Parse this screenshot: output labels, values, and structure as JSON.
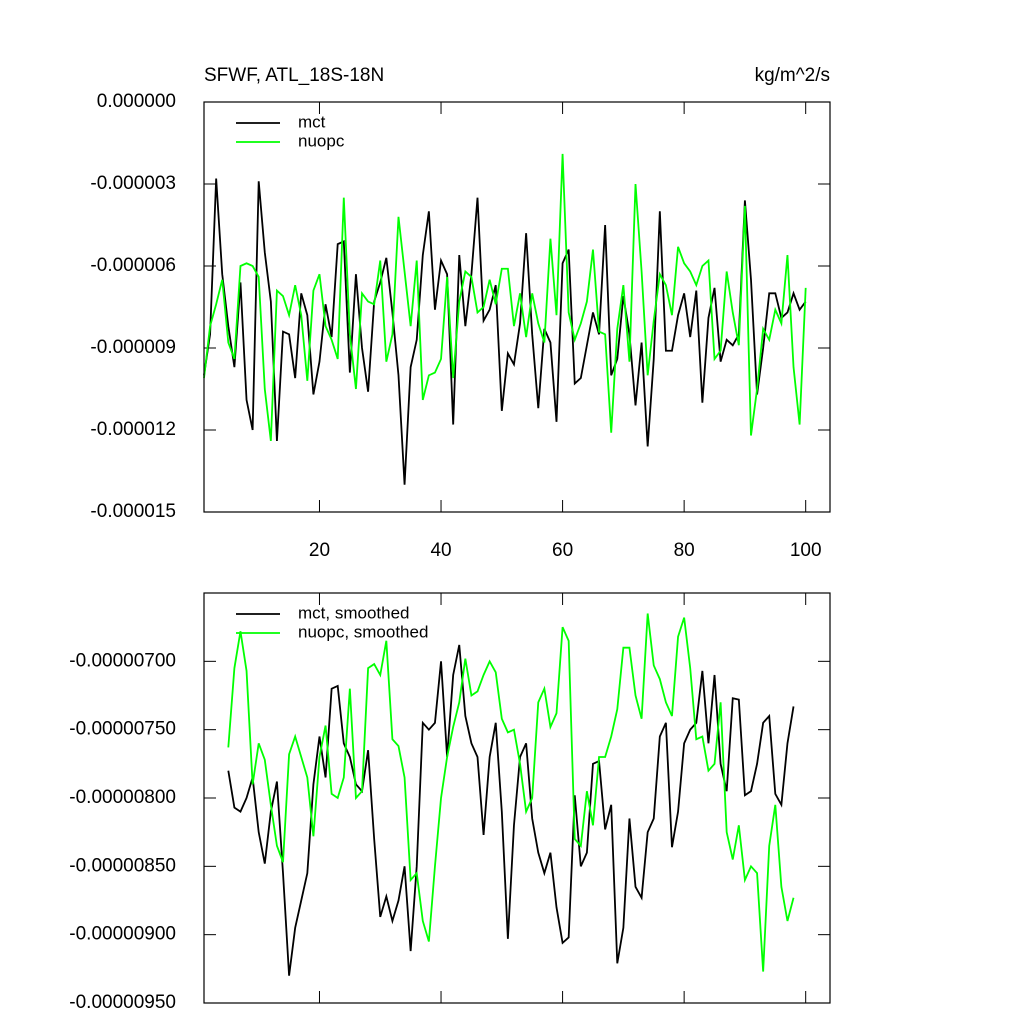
{
  "chart_data": [
    {
      "type": "line",
      "title": "SFWF, ATL_18S-18N",
      "subtitle": "kg/m^2/s",
      "x": [
        1,
        2,
        3,
        4,
        5,
        6,
        7,
        8,
        9,
        10,
        11,
        12,
        13,
        14,
        15,
        16,
        17,
        18,
        19,
        20,
        21,
        22,
        23,
        24,
        25,
        26,
        27,
        28,
        29,
        30,
        31,
        32,
        33,
        34,
        35,
        36,
        37,
        38,
        39,
        40,
        41,
        42,
        43,
        44,
        45,
        46,
        47,
        48,
        49,
        50,
        51,
        52,
        53,
        54,
        55,
        56,
        57,
        58,
        59,
        60,
        61,
        62,
        63,
        64,
        65,
        66,
        67,
        68,
        69,
        70,
        71,
        72,
        73,
        74,
        75,
        76,
        77,
        78,
        79,
        80,
        81,
        82,
        83,
        84,
        85,
        86,
        87,
        88,
        89,
        90,
        91,
        92,
        93,
        94,
        95,
        96,
        97,
        98,
        99,
        100
      ],
      "series": [
        {
          "name": "mct",
          "color": "#000000",
          "values": [
            -1e-05,
            -8.5e-06,
            -2.8e-06,
            -6.3e-06,
            -8.2e-06,
            -9.7e-06,
            -6.6e-06,
            -1.09e-05,
            -1.2e-05,
            -2.9e-06,
            -5.5e-06,
            -7.3e-06,
            -1.24e-05,
            -8.4e-06,
            -8.5e-06,
            -1.01e-05,
            -7e-06,
            -7.8e-06,
            -1.07e-05,
            -9.5e-06,
            -7.4e-06,
            -8.6e-06,
            -5.2e-06,
            -5.1e-06,
            -9.9e-06,
            -6.3e-06,
            -9e-06,
            -1.06e-05,
            -7.3e-06,
            -6.6e-06,
            -5.7e-06,
            -7.7e-06,
            -1e-05,
            -1.4e-05,
            -9.7e-06,
            -8.7e-06,
            -5.6e-06,
            -4e-06,
            -7.6e-06,
            -5.8e-06,
            -6.3e-06,
            -1.18e-05,
            -5.6e-06,
            -8.2e-06,
            -6.3e-06,
            -3.5e-06,
            -8e-06,
            -7.6e-06,
            -6.7e-06,
            -1.13e-05,
            -9.2e-06,
            -9.6e-06,
            -8.1e-06,
            -4.8e-06,
            -8.5e-06,
            -1.12e-05,
            -8.3e-06,
            -8.8e-06,
            -1.17e-05,
            -5.9e-06,
            -5.4e-06,
            -1.03e-05,
            -1.01e-05,
            -8.9e-06,
            -7.7e-06,
            -8.5e-06,
            -4.5e-06,
            -1e-05,
            -9.4e-06,
            -7.1e-06,
            -8.5e-06,
            -1.11e-05,
            -8.8e-06,
            -1.26e-05,
            -9.4e-06,
            -4e-06,
            -9.1e-06,
            -9.1e-06,
            -7.8e-06,
            -7e-06,
            -8.6e-06,
            -6.9e-06,
            -1.1e-05,
            -7.9e-06,
            -6.8e-06,
            -9.5e-06,
            -8.7e-06,
            -8.9e-06,
            -8.5e-06,
            -3.6e-06,
            -6.5e-06,
            -1.07e-05,
            -9e-06,
            -7e-06,
            -7e-06,
            -7.9e-06,
            -7.7e-06,
            -7e-06,
            -7.6e-06,
            -7.3e-06
          ]
        },
        {
          "name": "nuopc",
          "color": "#00ff00",
          "values": [
            -1.01e-05,
            -8.2e-06,
            -7.4e-06,
            -6.5e-06,
            -8.8e-06,
            -9.4e-06,
            -6e-06,
            -5.9e-06,
            -6e-06,
            -6.4e-06,
            -1.05e-05,
            -1.24e-05,
            -6.9e-06,
            -7.1e-06,
            -7.8e-06,
            -6.7e-06,
            -7.8e-06,
            -1.02e-05,
            -6.9e-06,
            -6.3e-06,
            -8.2e-06,
            -8.7e-06,
            -9.4e-06,
            -3.5e-06,
            -8.5e-06,
            -1.05e-05,
            -7e-06,
            -7.3e-06,
            -7.4e-06,
            -5.8e-06,
            -9.5e-06,
            -8.5e-06,
            -4.2e-06,
            -6.2e-06,
            -8.2e-06,
            -5.8e-06,
            -1.09e-05,
            -1e-05,
            -9.9e-06,
            -9.4e-06,
            -6.4e-06,
            -1.01e-05,
            -7.3e-06,
            -6.2e-06,
            -6.4e-06,
            -7.7e-06,
            -7.5e-06,
            -6.5e-06,
            -7.4e-06,
            -6.1e-06,
            -6.1e-06,
            -8.2e-06,
            -7e-06,
            -8.6e-06,
            -7e-06,
            -8.1e-06,
            -8.8e-06,
            -5e-06,
            -7.8e-06,
            -1.9e-06,
            -7.7e-06,
            -8.7e-06,
            -8.1e-06,
            -7.3e-06,
            -5.4e-06,
            -8.4e-06,
            -8.5e-06,
            -1.21e-05,
            -8.3e-06,
            -6.7e-06,
            -9.5e-06,
            -3e-06,
            -6.2e-06,
            -1e-05,
            -8e-06,
            -6.3e-06,
            -6.7e-06,
            -7.8e-06,
            -5.3e-06,
            -5.9e-06,
            -6.2e-06,
            -6.7e-06,
            -6e-06,
            -5.8e-06,
            -9.4e-06,
            -9.1e-06,
            -6.2e-06,
            -7.7e-06,
            -8.9e-06,
            -3.8e-06,
            -1.22e-05,
            -1.05e-05,
            -8.3e-06,
            -8.7e-06,
            -7.6e-06,
            -8.1e-06,
            -5.6e-06,
            -9.7e-06,
            -1.18e-05,
            -6.8e-06
          ]
        }
      ],
      "xlim": [
        1,
        104
      ],
      "xticks": [
        20,
        40,
        60,
        80,
        100
      ],
      "show_xtick_labels": true,
      "ylim": [
        -1.5e-05,
        0
      ],
      "yticks": [
        {
          "value": 0,
          "label": "0.000000"
        },
        {
          "value": -3e-06,
          "label": "-0.000003"
        },
        {
          "value": -6e-06,
          "label": "-0.000006"
        },
        {
          "value": -9e-06,
          "label": "-0.000009"
        },
        {
          "value": -1.2e-05,
          "label": "-0.000012"
        },
        {
          "value": -1.5e-05,
          "label": "-0.000015"
        }
      ],
      "legend": "upper left"
    },
    {
      "type": "line",
      "x": [
        5,
        6,
        7,
        8,
        9,
        10,
        11,
        12,
        13,
        14,
        15,
        16,
        17,
        18,
        19,
        20,
        21,
        22,
        23,
        24,
        25,
        26,
        27,
        28,
        29,
        30,
        31,
        32,
        33,
        34,
        35,
        36,
        37,
        38,
        39,
        40,
        41,
        42,
        43,
        44,
        45,
        46,
        47,
        48,
        49,
        50,
        51,
        52,
        53,
        54,
        55,
        56,
        57,
        58,
        59,
        60,
        61,
        62,
        63,
        64,
        65,
        66,
        67,
        68,
        69,
        70,
        71,
        72,
        73,
        74,
        75,
        76,
        77,
        78,
        79,
        80,
        81,
        82,
        83,
        84,
        85,
        86,
        87,
        88,
        89,
        90,
        91,
        92,
        93,
        94,
        95,
        96,
        97,
        98
      ],
      "series": [
        {
          "name": "mct, smoothed",
          "color": "#000000",
          "values": [
            -7.8e-06,
            -8.07e-06,
            -8.1e-06,
            -8e-06,
            -7.85e-06,
            -8.25e-06,
            -8.48e-06,
            -8.1e-06,
            -7.88e-06,
            -8.55e-06,
            -9.3e-06,
            -8.95e-06,
            -8.75e-06,
            -8.55e-06,
            -7.9e-06,
            -7.55e-06,
            -7.85e-06,
            -7.2e-06,
            -7.18e-06,
            -7.6e-06,
            -7.7e-06,
            -7.9e-06,
            -7.95e-06,
            -7.65e-06,
            -8.3e-06,
            -8.87e-06,
            -8.72e-06,
            -8.9e-06,
            -8.75e-06,
            -8.5e-06,
            -9.12e-06,
            -8.5e-06,
            -7.45e-06,
            -7.5e-06,
            -7.45e-06,
            -7e-06,
            -7.7e-06,
            -7.1e-06,
            -6.88e-06,
            -7.4e-06,
            -7.6e-06,
            -7.7e-06,
            -8.27e-06,
            -7.7e-06,
            -7.45e-06,
            -8.1e-06,
            -9.03e-06,
            -8.2e-06,
            -7.7e-06,
            -7.6e-06,
            -8.15e-06,
            -8.4e-06,
            -8.55e-06,
            -8.4e-06,
            -8.8e-06,
            -9.06e-06,
            -9.02e-06,
            -7.98e-06,
            -8.5e-06,
            -8.4e-06,
            -7.75e-06,
            -7.73e-06,
            -8.23e-06,
            -8.05e-06,
            -9.21e-06,
            -8.95e-06,
            -8.15e-06,
            -8.65e-06,
            -8.73e-06,
            -8.25e-06,
            -8.15e-06,
            -7.55e-06,
            -7.45e-06,
            -8.36e-06,
            -8.1e-06,
            -7.6e-06,
            -7.5e-06,
            -7.45e-06,
            -7.07e-06,
            -7.6e-06,
            -7.1e-06,
            -7.75e-06,
            -7.95e-06,
            -7.27e-06,
            -7.28e-06,
            -7.98e-06,
            -7.95e-06,
            -7.75e-06,
            -7.45e-06,
            -7.4e-06,
            -7.97e-06,
            -8.05e-06,
            -7.6e-06,
            -7.33e-06
          ]
        },
        {
          "name": "nuopc, smoothed",
          "color": "#00ff00",
          "values": [
            -7.63e-06,
            -7.05e-06,
            -6.78e-06,
            -7.07e-06,
            -7.9e-06,
            -7.6e-06,
            -7.72e-06,
            -8.05e-06,
            -8.35e-06,
            -8.47e-06,
            -7.68e-06,
            -7.55e-06,
            -7.7e-06,
            -7.85e-06,
            -8.28e-06,
            -7.7e-06,
            -7.47e-06,
            -7.97e-06,
            -8e-06,
            -7.85e-06,
            -7.2e-06,
            -8e-06,
            -7.95e-06,
            -7.05e-06,
            -7.02e-06,
            -7.1e-06,
            -6.85e-06,
            -7.57e-06,
            -7.62e-06,
            -7.85e-06,
            -8.6e-06,
            -8.55e-06,
            -8.9e-06,
            -9.05e-06,
            -8.5e-06,
            -8e-06,
            -7.7e-06,
            -7.48e-06,
            -7.3e-06,
            -6.98e-06,
            -7.25e-06,
            -7.22e-06,
            -7.1e-06,
            -7e-06,
            -7.08e-06,
            -7.42e-06,
            -7.52e-06,
            -7.5e-06,
            -7.75e-06,
            -8.1e-06,
            -8e-06,
            -7.3e-06,
            -7.2e-06,
            -7.48e-06,
            -7.38e-06,
            -6.75e-06,
            -6.85e-06,
            -8.3e-06,
            -8.35e-06,
            -7.95e-06,
            -8.2e-06,
            -7.7e-06,
            -7.7e-06,
            -7.55e-06,
            -7.35e-06,
            -6.9e-06,
            -6.9e-06,
            -7.25e-06,
            -7.42e-06,
            -6.65e-06,
            -7.03e-06,
            -7.13e-06,
            -7.3e-06,
            -7.4e-06,
            -6.82e-06,
            -6.68e-06,
            -7.05e-06,
            -7.57e-06,
            -7.55e-06,
            -7.8e-06,
            -7.75e-06,
            -7.3e-06,
            -8.25e-06,
            -8.45e-06,
            -8.2e-06,
            -8.6e-06,
            -8.5e-06,
            -8.55e-06,
            -9.27e-06,
            -8.35e-06,
            -8.05e-06,
            -8.65e-06,
            -8.9e-06,
            -8.73e-06
          ]
        }
      ],
      "xlim": [
        1,
        104
      ],
      "xticks": [
        20,
        40,
        60,
        80,
        100
      ],
      "show_xtick_labels": false,
      "ylim": [
        -9.5e-06,
        -6.5e-06
      ],
      "yticks": [
        {
          "value": -7e-06,
          "label": "-0.00000700"
        },
        {
          "value": -7.5e-06,
          "label": "-0.00000750"
        },
        {
          "value": -8e-06,
          "label": "-0.00000800"
        },
        {
          "value": -8.5e-06,
          "label": "-0.00000850"
        },
        {
          "value": -9e-06,
          "label": "-0.00000900"
        },
        {
          "value": -9.5e-06,
          "label": "-0.00000950"
        }
      ],
      "legend": "upper left"
    }
  ]
}
